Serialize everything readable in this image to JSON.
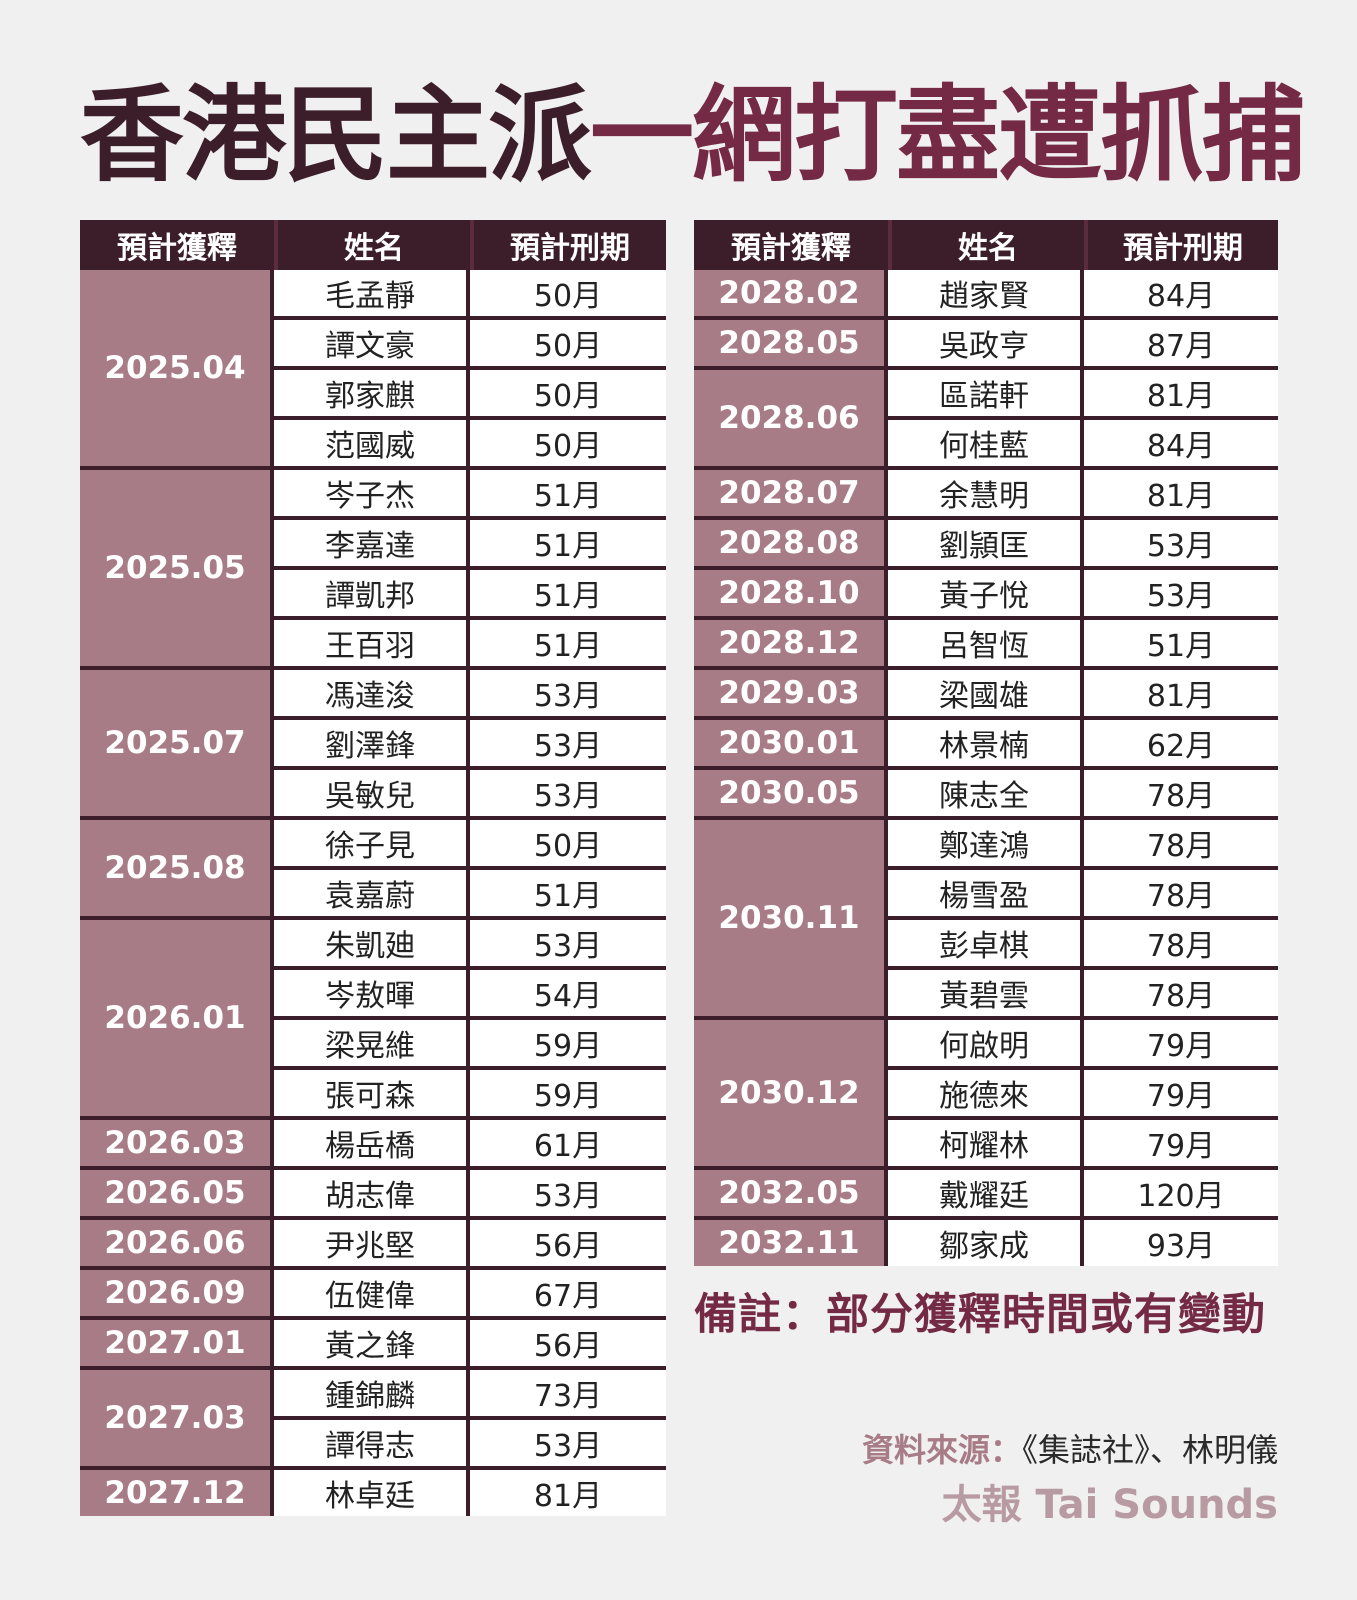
{
  "title": {
    "part1": "香港民主派",
    "part2": "一網打盡遭抓捕"
  },
  "headers": {
    "date": "預計獲釋",
    "name": "姓名",
    "term": "預計刑期"
  },
  "left_groups": [
    {
      "date": "2025.04",
      "people": [
        {
          "name": "毛孟靜",
          "term": "50月"
        },
        {
          "name": "譚文豪",
          "term": "50月"
        },
        {
          "name": "郭家麒",
          "term": "50月"
        },
        {
          "name": "范國威",
          "term": "50月"
        }
      ]
    },
    {
      "date": "2025.05",
      "people": [
        {
          "name": "岑子杰",
          "term": "51月"
        },
        {
          "name": "李嘉達",
          "term": "51月"
        },
        {
          "name": "譚凱邦",
          "term": "51月"
        },
        {
          "name": "王百羽",
          "term": "51月"
        }
      ]
    },
    {
      "date": "2025.07",
      "people": [
        {
          "name": "馮達浚",
          "term": "53月"
        },
        {
          "name": "劉澤鋒",
          "term": "53月"
        },
        {
          "name": "吳敏兒",
          "term": "53月"
        }
      ]
    },
    {
      "date": "2025.08",
      "people": [
        {
          "name": "徐子見",
          "term": "50月"
        },
        {
          "name": "袁嘉蔚",
          "term": "51月"
        }
      ]
    },
    {
      "date": "2026.01",
      "people": [
        {
          "name": "朱凱廸",
          "term": "53月"
        },
        {
          "name": "岑敖暉",
          "term": "54月"
        },
        {
          "name": "梁晃維",
          "term": "59月"
        },
        {
          "name": "張可森",
          "term": "59月"
        }
      ]
    },
    {
      "date": "2026.03",
      "people": [
        {
          "name": "楊岳橋",
          "term": "61月"
        }
      ]
    },
    {
      "date": "2026.05",
      "people": [
        {
          "name": "胡志偉",
          "term": "53月"
        }
      ]
    },
    {
      "date": "2026.06",
      "people": [
        {
          "name": "尹兆堅",
          "term": "56月"
        }
      ]
    },
    {
      "date": "2026.09",
      "people": [
        {
          "name": "伍健偉",
          "term": "67月"
        }
      ]
    },
    {
      "date": "2027.01",
      "people": [
        {
          "name": "黃之鋒",
          "term": "56月"
        }
      ]
    },
    {
      "date": "2027.03",
      "people": [
        {
          "name": "鍾錦麟",
          "term": "73月"
        },
        {
          "name": "譚得志",
          "term": "53月"
        }
      ]
    },
    {
      "date": "2027.12",
      "people": [
        {
          "name": "林卓廷",
          "term": "81月"
        }
      ]
    }
  ],
  "right_groups": [
    {
      "date": "2028.02",
      "people": [
        {
          "name": "趙家賢",
          "term": "84月"
        }
      ]
    },
    {
      "date": "2028.05",
      "people": [
        {
          "name": "吳政亨",
          "term": "87月"
        }
      ]
    },
    {
      "date": "2028.06",
      "people": [
        {
          "name": "區諾軒",
          "term": "81月"
        },
        {
          "name": "何桂藍",
          "term": "84月"
        }
      ]
    },
    {
      "date": "2028.07",
      "people": [
        {
          "name": "余慧明",
          "term": "81月"
        }
      ]
    },
    {
      "date": "2028.08",
      "people": [
        {
          "name": "劉頴匡",
          "term": "53月"
        }
      ]
    },
    {
      "date": "2028.10",
      "people": [
        {
          "name": "黃子悅",
          "term": "53月"
        }
      ]
    },
    {
      "date": "2028.12",
      "people": [
        {
          "name": "呂智恆",
          "term": "51月"
        }
      ]
    },
    {
      "date": "2029.03",
      "people": [
        {
          "name": "梁國雄",
          "term": "81月"
        }
      ]
    },
    {
      "date": "2030.01",
      "people": [
        {
          "name": "林景楠",
          "term": "62月"
        }
      ]
    },
    {
      "date": "2030.05",
      "people": [
        {
          "name": "陳志全",
          "term": "78月"
        }
      ]
    },
    {
      "date": "2030.11",
      "people": [
        {
          "name": "鄭達鴻",
          "term": "78月"
        },
        {
          "name": "楊雪盈",
          "term": "78月"
        },
        {
          "name": "彭卓棋",
          "term": "78月"
        },
        {
          "name": "黃碧雲",
          "term": "78月"
        }
      ]
    },
    {
      "date": "2030.12",
      "people": [
        {
          "name": "何啟明",
          "term": "79月"
        },
        {
          "name": "施德來",
          "term": "79月"
        },
        {
          "name": "柯耀林",
          "term": "79月"
        }
      ]
    },
    {
      "date": "2032.05",
      "people": [
        {
          "name": "戴耀廷",
          "term": "120月"
        }
      ]
    },
    {
      "date": "2032.11",
      "people": [
        {
          "name": "鄒家成",
          "term": "93月"
        }
      ]
    }
  ],
  "note": "備註：部分獲釋時間或有變動",
  "source": {
    "label": "資料來源：",
    "value": "《集誌社》、林明儀"
  },
  "brand": "太報 Tai Sounds",
  "colors": {
    "dark": "#3b1e29",
    "accent": "#742a44",
    "date_cell": "#a87c86"
  }
}
